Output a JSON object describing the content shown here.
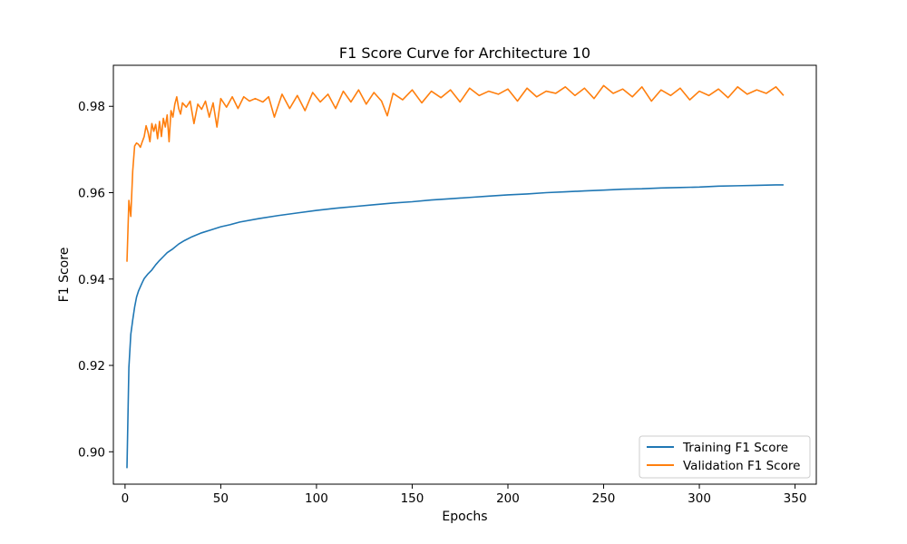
{
  "chart_data": {
    "type": "line",
    "title": "F1 Score Curve for Architecture 10",
    "xlabel": "Epochs",
    "ylabel": "F1 Score",
    "xlim": [
      -6.1,
      361.1
    ],
    "ylim": [
      0.8925,
      0.9895
    ],
    "xticks": [
      0,
      50,
      100,
      150,
      200,
      250,
      300,
      350
    ],
    "yticks": [
      0.9,
      0.92,
      0.94,
      0.96,
      0.98
    ],
    "xtick_labels": [
      "0",
      "50",
      "100",
      "150",
      "200",
      "250",
      "300",
      "350"
    ],
    "ytick_labels": [
      "0.90",
      "0.92",
      "0.94",
      "0.96",
      "0.98"
    ],
    "grid": false,
    "legend_position": "lower-right",
    "series": [
      {
        "name": "Training F1 Score",
        "color": "#1f77b4",
        "x": [
          1,
          2,
          3,
          4,
          5,
          6,
          7,
          8,
          9,
          10,
          12,
          14,
          16,
          18,
          20,
          22,
          25,
          28,
          31,
          35,
          40,
          45,
          50,
          55,
          60,
          70,
          80,
          90,
          100,
          110,
          120,
          130,
          140,
          150,
          160,
          170,
          180,
          190,
          200,
          210,
          220,
          230,
          240,
          250,
          260,
          270,
          280,
          290,
          300,
          310,
          320,
          330,
          340,
          344
        ],
        "y": [
          0.8962,
          0.9195,
          0.9272,
          0.9305,
          0.9335,
          0.9358,
          0.9372,
          0.9382,
          0.9392,
          0.9401,
          0.9412,
          0.9421,
          0.9433,
          0.9443,
          0.9452,
          0.9461,
          0.947,
          0.9481,
          0.9489,
          0.9498,
          0.9507,
          0.9514,
          0.9521,
          0.9526,
          0.9532,
          0.954,
          0.9547,
          0.9553,
          0.9559,
          0.9564,
          0.9568,
          0.9572,
          0.9576,
          0.9579,
          0.9583,
          0.9586,
          0.9589,
          0.9592,
          0.9595,
          0.9597,
          0.96,
          0.9602,
          0.9604,
          0.9606,
          0.9608,
          0.9609,
          0.9611,
          0.9612,
          0.9613,
          0.9615,
          0.9616,
          0.9617,
          0.9618,
          0.9618
        ]
      },
      {
        "name": "Validation F1 Score",
        "color": "#ff7f0e",
        "x": [
          1,
          2,
          3,
          4,
          5,
          6,
          7,
          8,
          9,
          10,
          11,
          12,
          13,
          14,
          15,
          16,
          17,
          18,
          19,
          20,
          21,
          22,
          23,
          24,
          25,
          26,
          27,
          28,
          29,
          30,
          32,
          34,
          36,
          38,
          40,
          42,
          44,
          46,
          48,
          50,
          53,
          56,
          59,
          62,
          65,
          68,
          72,
          75,
          78,
          82,
          86,
          90,
          94,
          98,
          102,
          106,
          110,
          114,
          118,
          122,
          126,
          130,
          134,
          137,
          140,
          145,
          150,
          155,
          160,
          165,
          170,
          175,
          180,
          185,
          190,
          195,
          200,
          205,
          210,
          215,
          220,
          225,
          230,
          235,
          240,
          245,
          250,
          255,
          260,
          265,
          270,
          275,
          280,
          285,
          290,
          295,
          300,
          305,
          310,
          315,
          320,
          325,
          330,
          335,
          340,
          344
        ],
        "y": [
          0.944,
          0.9582,
          0.9545,
          0.965,
          0.9708,
          0.9715,
          0.9712,
          0.9705,
          0.9718,
          0.973,
          0.9755,
          0.974,
          0.9718,
          0.976,
          0.9742,
          0.9758,
          0.9725,
          0.9765,
          0.973,
          0.9772,
          0.9752,
          0.978,
          0.9718,
          0.979,
          0.9775,
          0.9805,
          0.9822,
          0.9795,
          0.9782,
          0.9808,
          0.9798,
          0.9812,
          0.976,
          0.9805,
          0.9793,
          0.9812,
          0.9775,
          0.9808,
          0.9752,
          0.9818,
          0.9798,
          0.9822,
          0.9795,
          0.9822,
          0.9812,
          0.9818,
          0.981,
          0.9822,
          0.9775,
          0.9828,
          0.9795,
          0.9825,
          0.979,
          0.9832,
          0.981,
          0.9828,
          0.9795,
          0.9835,
          0.981,
          0.9838,
          0.9805,
          0.9832,
          0.9812,
          0.9778,
          0.983,
          0.9815,
          0.9838,
          0.9808,
          0.9835,
          0.982,
          0.9838,
          0.981,
          0.9842,
          0.9825,
          0.9835,
          0.9828,
          0.984,
          0.9812,
          0.9842,
          0.9822,
          0.9835,
          0.983,
          0.9845,
          0.9825,
          0.9842,
          0.9818,
          0.9848,
          0.983,
          0.984,
          0.9822,
          0.9845,
          0.9812,
          0.9838,
          0.9825,
          0.9842,
          0.9815,
          0.9835,
          0.9825,
          0.984,
          0.982,
          0.9845,
          0.9828,
          0.9838,
          0.983,
          0.9845,
          0.9825
        ]
      }
    ]
  }
}
